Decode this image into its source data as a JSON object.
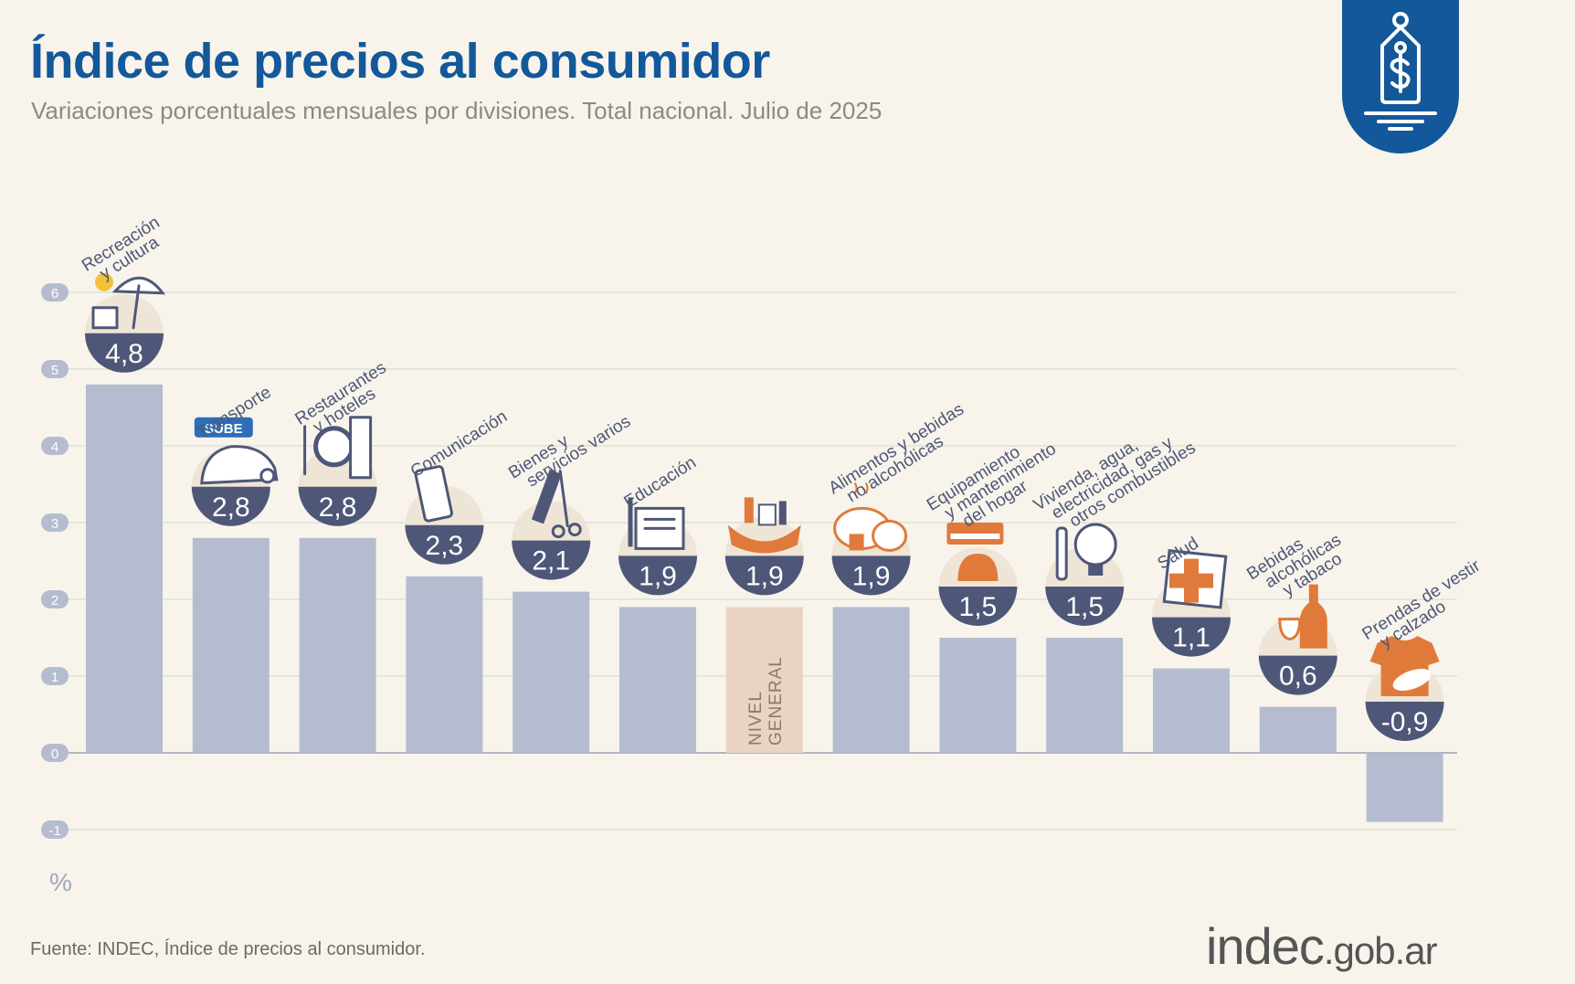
{
  "header": {
    "title": "Índice de precios al consumidor",
    "subtitle": "Variaciones porcentuales mensuales por divisiones. Total nacional. Julio de 2025"
  },
  "footer": {
    "source": "Fuente: INDEC, Índice de precios al consumidor.",
    "brand_main": "indec",
    "brand_suffix": ".gob.ar"
  },
  "badge": {
    "icon": "price-tag-dollar-icon"
  },
  "colors": {
    "bar": "#b5bccf",
    "bar_general": "#ead3c3",
    "label_circle": "#4e5777",
    "title": "#13589b",
    "accent_icon": "#e07a3a"
  },
  "chart_data": {
    "type": "bar",
    "unit_label": "%",
    "ylim": [
      -1,
      6
    ],
    "yticks": [
      -1,
      0,
      1,
      2,
      3,
      4,
      5,
      6
    ],
    "grid": true,
    "categories": [
      {
        "label": [
          "Recreación",
          "y cultura"
        ],
        "value": 4.8,
        "value_label": "4,8",
        "icon": "beach-umbrella-icon"
      },
      {
        "label": [
          "Transporte"
        ],
        "value": 2.8,
        "value_label": "2,8",
        "icon": "car-sube-icon",
        "icon_text": "SUBE"
      },
      {
        "label": [
          "Restaurantes",
          "y hoteles"
        ],
        "value": 2.8,
        "value_label": "2,8",
        "icon": "plate-cutlery-icon"
      },
      {
        "label": [
          "Comunicación"
        ],
        "value": 2.3,
        "value_label": "2,3",
        "icon": "phone-icon"
      },
      {
        "label": [
          "Bienes y",
          "servicios varios"
        ],
        "value": 2.1,
        "value_label": "2,1",
        "icon": "comb-scissors-icon"
      },
      {
        "label": [
          "Educación"
        ],
        "value": 1.9,
        "value_label": "1,9",
        "icon": "book-pencil-icon"
      },
      {
        "label": [],
        "value": 1.9,
        "value_label": "1,9",
        "icon": "shopping-bag-icon",
        "inner_label": [
          "NIVEL",
          "GENERAL"
        ],
        "highlight": true
      },
      {
        "label": [
          "Alimentos y bebidas",
          "no alcohólicas"
        ],
        "value": 1.9,
        "value_label": "1,9",
        "icon": "roast-chicken-icon"
      },
      {
        "label": [
          "Equipamiento",
          "y mantenimiento",
          "del hogar"
        ],
        "value": 1.5,
        "value_label": "1,5",
        "icon": "air-conditioner-icon"
      },
      {
        "label": [
          "Vivienda, agua,",
          "electricidad, gas y",
          "otros combustibles"
        ],
        "value": 1.5,
        "value_label": "1,5",
        "icon": "bulb-wrench-icon"
      },
      {
        "label": [
          "Salud"
        ],
        "value": 1.1,
        "value_label": "1,1",
        "icon": "health-cross-icon"
      },
      {
        "label": [
          "Bebidas",
          "alcohólicas",
          "y tabaco"
        ],
        "value": 0.6,
        "value_label": "0,6",
        "icon": "wine-bottle-icon"
      },
      {
        "label": [
          "Prendas de vestir",
          "y calzado"
        ],
        "value": -0.9,
        "value_label": "-0,9",
        "icon": "shirt-shoe-icon"
      }
    ]
  }
}
